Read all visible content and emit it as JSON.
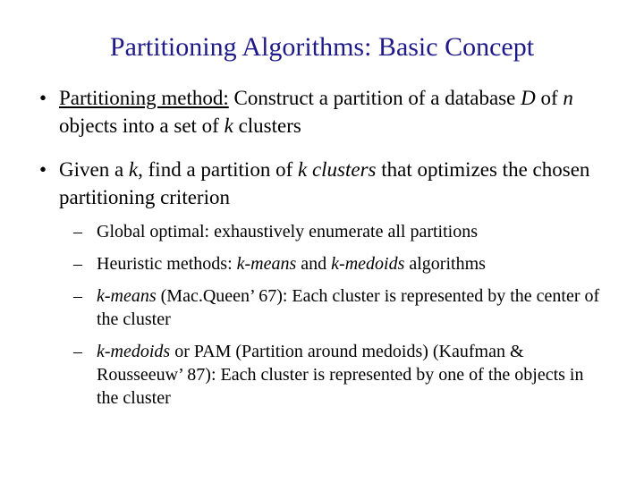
{
  "title_color": "#1f1a8a",
  "text_color": "#000000",
  "background_color": "#ffffff",
  "title": "Partitioning Algorithms: Basic Concept",
  "bullets": [
    {
      "segments": [
        {
          "t": "Partitioning method:",
          "u": true
        },
        {
          "t": " Construct a partition of a database "
        },
        {
          "t": "D",
          "i": true
        },
        {
          "t": " of "
        },
        {
          "t": "n",
          "i": true
        },
        {
          "t": " objects into a set of "
        },
        {
          "t": "k",
          "i": true
        },
        {
          "t": " clusters"
        }
      ],
      "sub": []
    },
    {
      "segments": [
        {
          "t": "Given a "
        },
        {
          "t": "k",
          "i": true
        },
        {
          "t": ", find a partition of "
        },
        {
          "t": "k clusters",
          "i": true
        },
        {
          "t": " that optimizes the chosen partitioning criterion"
        }
      ],
      "sub": [
        {
          "segments": [
            {
              "t": "Global optimal: exhaustively enumerate all partitions"
            }
          ]
        },
        {
          "segments": [
            {
              "t": "Heuristic methods: "
            },
            {
              "t": "k-means",
              "i": true
            },
            {
              "t": " and "
            },
            {
              "t": "k-medoids",
              "i": true
            },
            {
              "t": " algorithms"
            }
          ]
        },
        {
          "segments": [
            {
              "t": "k-means",
              "i": true
            },
            {
              "t": " (Mac.Queen’ 67): Each cluster is represented by the center of the cluster"
            }
          ]
        },
        {
          "segments": [
            {
              "t": "k-medoids",
              "i": true
            },
            {
              "t": " or PAM (Partition around medoids) (Kaufman & Rousseeuw’ 87): Each cluster is represented by one of the objects in the cluster"
            }
          ]
        }
      ]
    }
  ]
}
